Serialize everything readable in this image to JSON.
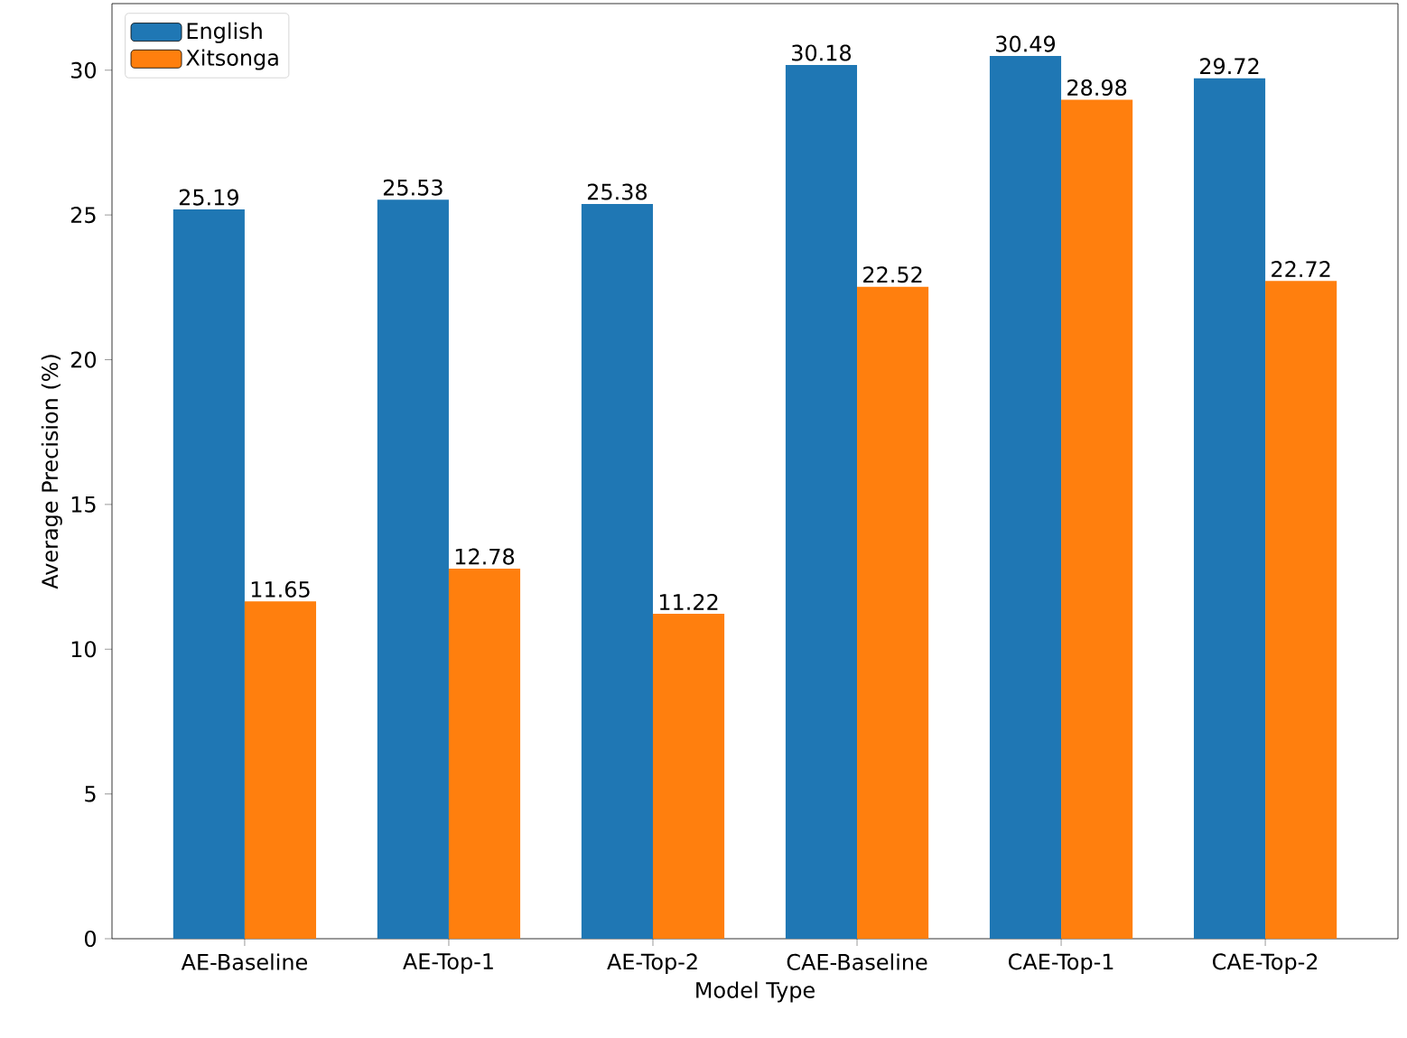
{
  "chart_data": {
    "type": "bar",
    "xlabel": "Model Type",
    "ylabel": "Average Precision (%)",
    "categories": [
      "AE-Baseline",
      "AE-Top-1",
      "AE-Top-2",
      "CAE-Baseline",
      "CAE-Top-1",
      "CAE-Top-2"
    ],
    "series": [
      {
        "name": "English",
        "color": "#1f77b4",
        "values": [
          25.19,
          25.53,
          25.38,
          30.18,
          30.49,
          29.72
        ]
      },
      {
        "name": "Xitsonga",
        "color": "#ff7f0e",
        "values": [
          11.65,
          12.78,
          11.22,
          22.52,
          28.98,
          22.72
        ]
      }
    ],
    "ylim": [
      0,
      32.3
    ],
    "yticks": [
      0,
      5,
      10,
      15,
      20,
      25,
      30
    ],
    "data_labels": true,
    "legend": "top left",
    "grid": false
  }
}
